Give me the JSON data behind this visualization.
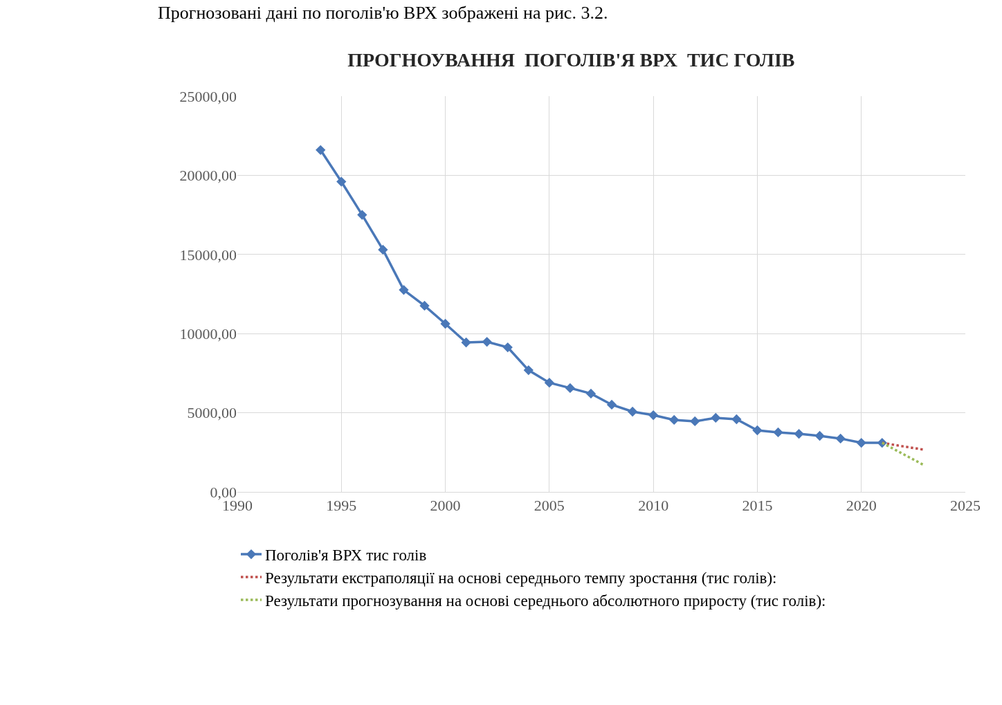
{
  "chart_data": {
    "type": "line",
    "title": "ПРОГНОУВАННЯ  ПОГОЛІВ'Я ВРХ  ТИС ГОЛІВ",
    "annotations": [
      "Прогнозовані дані по поголів'ю ВРХ зображені на рис. 3.2."
    ],
    "series": [
      {
        "name": "Поголів'я ВРХ тис голів",
        "color": "#4a78b8",
        "marker": "diamond",
        "line_style": "solid",
        "x": [
          1994,
          1995,
          1996,
          1997,
          1998,
          1999,
          2000,
          2001,
          2002,
          2003,
          2004,
          2005,
          2006,
          2007,
          2008,
          2009,
          2010,
          2011,
          2012,
          2013,
          2014,
          2015,
          2016,
          2017,
          2018,
          2019,
          2020,
          2021
        ],
        "values": [
          21600,
          19600,
          17500,
          15300,
          12760,
          11760,
          10620,
          9440,
          9480,
          9130,
          7690,
          6900,
          6560,
          6210,
          5510,
          5070,
          4850,
          4550,
          4460,
          4680,
          4590,
          3890,
          3760,
          3670,
          3540,
          3370,
          3100,
          3100
        ]
      },
      {
        "name": "Результати екстраполяції на основі середнього темпу зростання (тис голів):",
        "color": "#c0504d",
        "marker": "none",
        "line_style": "dotted",
        "x": [
          2021,
          2022,
          2023
        ],
        "values": [
          3100,
          2880,
          2670
        ]
      },
      {
        "name": "Результати прогнозування на основі середнього абсолютного приросту (тис голів):",
        "color": "#9bbb59",
        "marker": "none",
        "line_style": "dotted",
        "x": [
          2021,
          2022,
          2023
        ],
        "values": [
          3100,
          2400,
          1700
        ]
      }
    ],
    "xlim": [
      1990,
      2025
    ],
    "xticks": [
      1990,
      1995,
      2000,
      2005,
      2010,
      2015,
      2020,
      2025
    ],
    "ylim": [
      0,
      25000
    ],
    "yticks": [
      {
        "value": 0,
        "label": "0,00"
      },
      {
        "value": 5000,
        "label": "5000,00"
      },
      {
        "value": 10000,
        "label": "10000,00"
      },
      {
        "value": 15000,
        "label": "15000,00"
      },
      {
        "value": 20000,
        "label": "20000,00"
      },
      {
        "value": 25000,
        "label": "25000,00"
      }
    ],
    "grid": true,
    "legend": "bottom"
  }
}
